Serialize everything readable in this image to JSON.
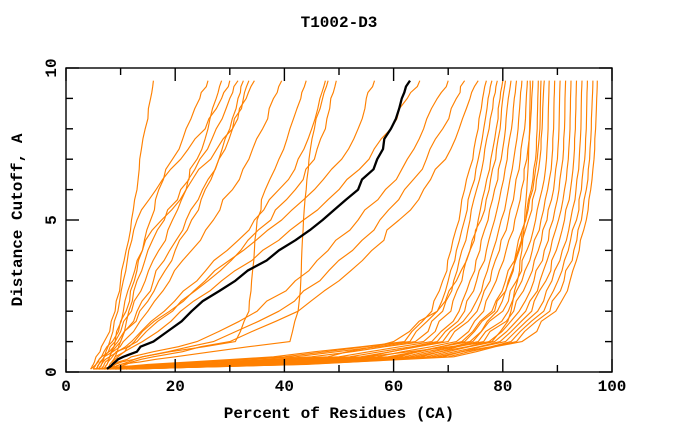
{
  "title": "T1002-D3",
  "chart_data": {
    "type": "line",
    "title": "T1002-D3",
    "xlabel": "Percent of Residues (CA)",
    "ylabel": "Distance Cutoff, A",
    "xlim": [
      0,
      100
    ],
    "ylim": [
      0,
      10
    ],
    "x_major_ticks": [
      0,
      20,
      40,
      60,
      80,
      100
    ],
    "x_minor_ticks": [
      10,
      30,
      50,
      70,
      90
    ],
    "y_major_ticks": [
      0,
      5,
      10
    ],
    "y_minor_ticks": [
      1,
      2,
      3,
      4,
      6,
      7,
      8,
      9
    ],
    "grid": false,
    "legend": "none",
    "colors": {
      "model_line": "#ff8000",
      "highlight_line": "#000000",
      "axis": "#000000",
      "background": "#ffffff"
    },
    "cutoff_levels": [
      0.1,
      0.25,
      0.5,
      1,
      2,
      3,
      4,
      5,
      6,
      7,
      8,
      9,
      9.7
    ],
    "series": [
      {
        "name": "highlighted-model",
        "color": "#000000",
        "percent_at_cutoff": [
          7.5,
          8.5,
          10.5,
          16,
          23,
          31,
          39,
          47,
          53.5,
          57,
          59.5,
          61.5,
          63
        ]
      },
      {
        "name": "model-01",
        "color": "#ff8000",
        "percent_at_cutoff": [
          4.5,
          5,
          5.5,
          7,
          9,
          10,
          11,
          12,
          13,
          13.5,
          14.5,
          15.5,
          16
        ]
      },
      {
        "name": "model-02",
        "color": "#ff8000",
        "percent_at_cutoff": [
          5,
          5.5,
          6.5,
          8.5,
          11,
          12.5,
          14,
          15.5,
          17,
          19.5,
          22,
          24.5,
          26
        ]
      },
      {
        "name": "model-03",
        "color": "#ff8000",
        "percent_at_cutoff": [
          6,
          6.5,
          7,
          8,
          9.5,
          10.5,
          11.5,
          13,
          16.5,
          21,
          25.5,
          28.5,
          30
        ]
      },
      {
        "name": "model-04",
        "color": "#ff8000",
        "percent_at_cutoff": [
          5.5,
          6,
          7,
          9,
          12,
          14.5,
          17,
          19.5,
          22,
          24.5,
          27.5,
          30,
          31.5
        ]
      },
      {
        "name": "model-05",
        "color": "#ff8000",
        "percent_at_cutoff": [
          4.5,
          5.5,
          6.5,
          9.5,
          13.5,
          17,
          20,
          23,
          25.5,
          28,
          30,
          31.5,
          32.5
        ]
      },
      {
        "name": "model-06",
        "color": "#ff8000",
        "percent_at_cutoff": [
          6.5,
          7,
          8,
          10,
          13,
          16,
          19,
          22,
          25,
          28,
          30.5,
          32.5,
          33.5
        ]
      },
      {
        "name": "model-07",
        "color": "#ff8000",
        "percent_at_cutoff": [
          7,
          7.5,
          8,
          9,
          10.5,
          12,
          14,
          17.5,
          22,
          26.5,
          30.5,
          33,
          34.5
        ]
      },
      {
        "name": "model-08",
        "color": "#ff8000",
        "percent_at_cutoff": [
          8,
          8.5,
          9,
          10,
          11.5,
          13,
          15,
          18,
          21,
          24,
          26,
          27.5,
          28.5
        ]
      },
      {
        "name": "model-09",
        "color": "#ff8000",
        "percent_at_cutoff": [
          5.5,
          6,
          7,
          10.5,
          15,
          19,
          23,
          27,
          30.5,
          33.5,
          36,
          38,
          39.5
        ]
      },
      {
        "name": "model-10",
        "color": "#ff8000",
        "percent_at_cutoff": [
          7,
          9,
          14,
          31,
          33.5,
          34,
          34.5,
          35,
          36.5,
          39,
          41,
          43,
          44
        ]
      },
      {
        "name": "model-11",
        "color": "#ff8000",
        "percent_at_cutoff": [
          8,
          10,
          20,
          41,
          42.5,
          43,
          43.2,
          43.5,
          44,
          44.5,
          45.5,
          47,
          48
        ]
      },
      {
        "name": "model-12",
        "color": "#ff8000",
        "percent_at_cutoff": [
          6,
          6.5,
          8,
          12,
          18,
          24,
          29.5,
          34.5,
          39,
          42.5,
          45,
          46.5,
          47.5
        ]
      },
      {
        "name": "model-13",
        "color": "#ff8000",
        "percent_at_cutoff": [
          7.5,
          8,
          9,
          13,
          19.5,
          26,
          32,
          37.5,
          42,
          45.5,
          47.5,
          48.5,
          49.5
        ]
      },
      {
        "name": "model-14",
        "color": "#ff8000",
        "percent_at_cutoff": [
          7,
          7.5,
          8.5,
          12.5,
          19,
          25.5,
          32.5,
          39.5,
          45.5,
          50.5,
          53.5,
          55,
          56.5
        ]
      },
      {
        "name": "model-15",
        "color": "#ff8000",
        "percent_at_cutoff": [
          8,
          8.5,
          9.5,
          14,
          21,
          28.5,
          36,
          43.5,
          50,
          55.5,
          59.5,
          62.5,
          64.8
        ]
      },
      {
        "name": "model-16",
        "color": "#ff8000",
        "percent_at_cutoff": [
          8,
          9,
          12,
          24,
          35,
          42,
          48,
          53.5,
          58.5,
          62.5,
          65.5,
          68,
          70
        ]
      },
      {
        "name": "model-17",
        "color": "#ff8000",
        "percent_at_cutoff": [
          8.5,
          10,
          14,
          27,
          39,
          46.5,
          52.5,
          57.5,
          62,
          66,
          69,
          71.5,
          73
        ]
      },
      {
        "name": "model-18",
        "color": "#ff8000",
        "percent_at_cutoff": [
          9,
          11,
          16,
          30,
          42.5,
          50,
          56,
          61,
          65.5,
          69.5,
          72,
          74,
          75.5
        ]
      },
      {
        "name": "model-19",
        "color": "#ff8000",
        "percent_at_cutoff": [
          5,
          15,
          38,
          62,
          67,
          69,
          70.5,
          72,
          73,
          74.5,
          75.5,
          76.3,
          77
        ]
      },
      {
        "name": "model-20",
        "color": "#ff8000",
        "percent_at_cutoff": [
          5.5,
          17,
          40,
          63,
          68,
          70,
          71.5,
          73,
          74.2,
          75.5,
          76.5,
          77.3,
          78
        ]
      },
      {
        "name": "model-21",
        "color": "#ff8000",
        "percent_at_cutoff": [
          6,
          18,
          42,
          64,
          69,
          71,
          72.5,
          74,
          75.2,
          76.5,
          77.5,
          78.3,
          79
        ]
      },
      {
        "name": "model-22",
        "color": "#ff8000",
        "percent_at_cutoff": [
          6,
          20,
          45,
          65.5,
          70.5,
          72.5,
          74,
          75.5,
          76.7,
          77.8,
          78.8,
          79.5,
          80
        ]
      },
      {
        "name": "model-23",
        "color": "#ff8000",
        "percent_at_cutoff": [
          6.5,
          22,
          48,
          60,
          68,
          71.5,
          74,
          76,
          77.5,
          78.7,
          79.5,
          80,
          80.5
        ]
      },
      {
        "name": "model-24",
        "color": "#ff8000",
        "percent_at_cutoff": [
          7,
          24,
          50,
          67,
          72,
          74,
          75.8,
          77.3,
          78.5,
          79.7,
          80.5,
          81,
          81.5
        ]
      },
      {
        "name": "model-25",
        "color": "#ff8000",
        "percent_at_cutoff": [
          7,
          25,
          52,
          68,
          73,
          75.2,
          77,
          78.5,
          79.7,
          80.8,
          81.6,
          82.1,
          82.5
        ]
      },
      {
        "name": "model-26",
        "color": "#ff8000",
        "percent_at_cutoff": [
          7.5,
          27,
          54,
          69,
          74.2,
          76.5,
          78.2,
          79.7,
          81,
          82,
          82.8,
          83.2,
          83.5
        ]
      },
      {
        "name": "model-27",
        "color": "#ff8000",
        "percent_at_cutoff": [
          8,
          28,
          55,
          70,
          75.3,
          77.7,
          79.4,
          81,
          82.2,
          83.2,
          84,
          84.3,
          84.5
        ]
      },
      {
        "name": "model-28",
        "color": "#ff8000",
        "percent_at_cutoff": [
          8,
          30,
          57,
          71.5,
          76.5,
          78.8,
          80.6,
          82.2,
          83.4,
          84.4,
          85,
          85.3,
          85.5
        ]
      },
      {
        "name": "model-29",
        "color": "#ff8000",
        "percent_at_cutoff": [
          8.5,
          32,
          59,
          74,
          79,
          81.2,
          82.8,
          84.2,
          85.2,
          86,
          86.3,
          86.4,
          86.5
        ]
      },
      {
        "name": "model-30",
        "color": "#ff8000",
        "percent_at_cutoff": [
          9,
          33,
          60,
          72.5,
          78,
          80.5,
          82.5,
          84.2,
          85.5,
          86.3,
          86.8,
          86.9,
          87
        ]
      },
      {
        "name": "model-31",
        "color": "#ff8000",
        "percent_at_cutoff": [
          9,
          34,
          61,
          73,
          78.5,
          81,
          83,
          84.7,
          86,
          86.8,
          87.2,
          87.4,
          87.6
        ]
      },
      {
        "name": "model-32",
        "color": "#ff8000",
        "percent_at_cutoff": [
          9.5,
          35,
          62,
          74.5,
          80,
          82.5,
          84.4,
          86,
          87.2,
          88,
          88.3,
          88.4,
          88.5
        ]
      },
      {
        "name": "model-33",
        "color": "#ff8000",
        "percent_at_cutoff": [
          10,
          36,
          63,
          75.5,
          81,
          83.5,
          85.4,
          87,
          88.2,
          89,
          89.3,
          89.4,
          89.5
        ]
      },
      {
        "name": "model-34",
        "color": "#ff8000",
        "percent_at_cutoff": [
          10,
          37,
          64,
          76.5,
          82,
          84.6,
          86.5,
          88.1,
          89.3,
          90,
          90.3,
          90.4,
          90.5
        ]
      },
      {
        "name": "model-35",
        "color": "#ff8000",
        "percent_at_cutoff": [
          10.5,
          38,
          65,
          77.5,
          83,
          85.7,
          87.6,
          89.2,
          90.3,
          91,
          91.3,
          91.4,
          91.5
        ]
      },
      {
        "name": "model-36",
        "color": "#ff8000",
        "percent_at_cutoff": [
          11,
          39,
          66,
          78.5,
          84.2,
          86.8,
          88.7,
          90.2,
          91.3,
          92,
          92.3,
          92.4,
          92.5
        ]
      },
      {
        "name": "model-37",
        "color": "#ff8000",
        "percent_at_cutoff": [
          11,
          40,
          67,
          79.5,
          85.3,
          87.9,
          89.8,
          91.3,
          92.4,
          93,
          93.3,
          93.4,
          93.5
        ]
      },
      {
        "name": "model-38",
        "color": "#ff8000",
        "percent_at_cutoff": [
          11.5,
          41,
          68,
          80.5,
          86.4,
          89,
          90.9,
          92.4,
          93.4,
          94,
          94.3,
          94.4,
          94.5
        ]
      },
      {
        "name": "model-39",
        "color": "#ff8000",
        "percent_at_cutoff": [
          12,
          42,
          69,
          81.5,
          87.5,
          90.1,
          92,
          93.5,
          94.4,
          95,
          95.3,
          95.4,
          95.5
        ]
      },
      {
        "name": "model-40",
        "color": "#ff8000",
        "percent_at_cutoff": [
          12,
          43,
          70,
          82.5,
          88.6,
          91.2,
          93,
          94.4,
          95.3,
          95.9,
          96.2,
          96.4,
          96.5
        ]
      },
      {
        "name": "model-41",
        "color": "#ff8000",
        "percent_at_cutoff": [
          12.5,
          44,
          71,
          83.5,
          89.7,
          92.3,
          94,
          95.3,
          96.1,
          96.7,
          97,
          97.2,
          97.3
        ]
      },
      {
        "name": "model-42",
        "color": "#ff8000",
        "percent_at_cutoff": [
          5,
          25,
          55,
          78,
          81.5,
          82.7,
          83.5,
          84,
          84.4,
          84.7,
          84.9,
          85,
          85
        ]
      }
    ]
  }
}
